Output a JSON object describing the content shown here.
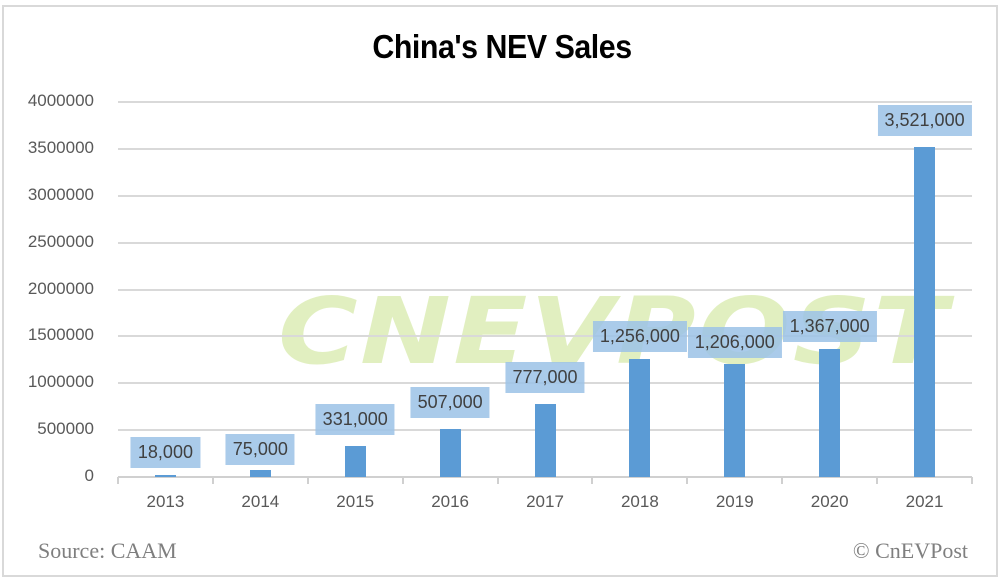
{
  "chart_data": {
    "type": "bar",
    "title": "China's NEV Sales",
    "xlabel": "",
    "ylabel": "",
    "categories": [
      "2013",
      "2014",
      "2015",
      "2016",
      "2017",
      "2018",
      "2019",
      "2020",
      "2021"
    ],
    "values": [
      18000,
      75000,
      331000,
      507000,
      777000,
      1256000,
      1206000,
      1367000,
      3521000
    ],
    "data_labels": [
      "18,000",
      "75,000",
      "331,000",
      "507,000",
      "777,000",
      "1,256,000",
      "1,206,000",
      "1,367,000",
      "3,521,000"
    ],
    "ylim": [
      0,
      4000000
    ],
    "yticks": [
      "4000000",
      "3500000",
      "3000000",
      "2500000",
      "2000000",
      "1500000",
      "1000000",
      "500000",
      "0"
    ],
    "grid": true,
    "legend": null,
    "bar_color": "#5b9bd5",
    "label_bg_color": "#9dc3e6"
  },
  "header": {
    "title": "China's NEV Sales"
  },
  "watermark": {
    "text": "CNEVPOST"
  },
  "footer": {
    "source": "Source: CAAM",
    "credit": "© CnEVPost"
  }
}
